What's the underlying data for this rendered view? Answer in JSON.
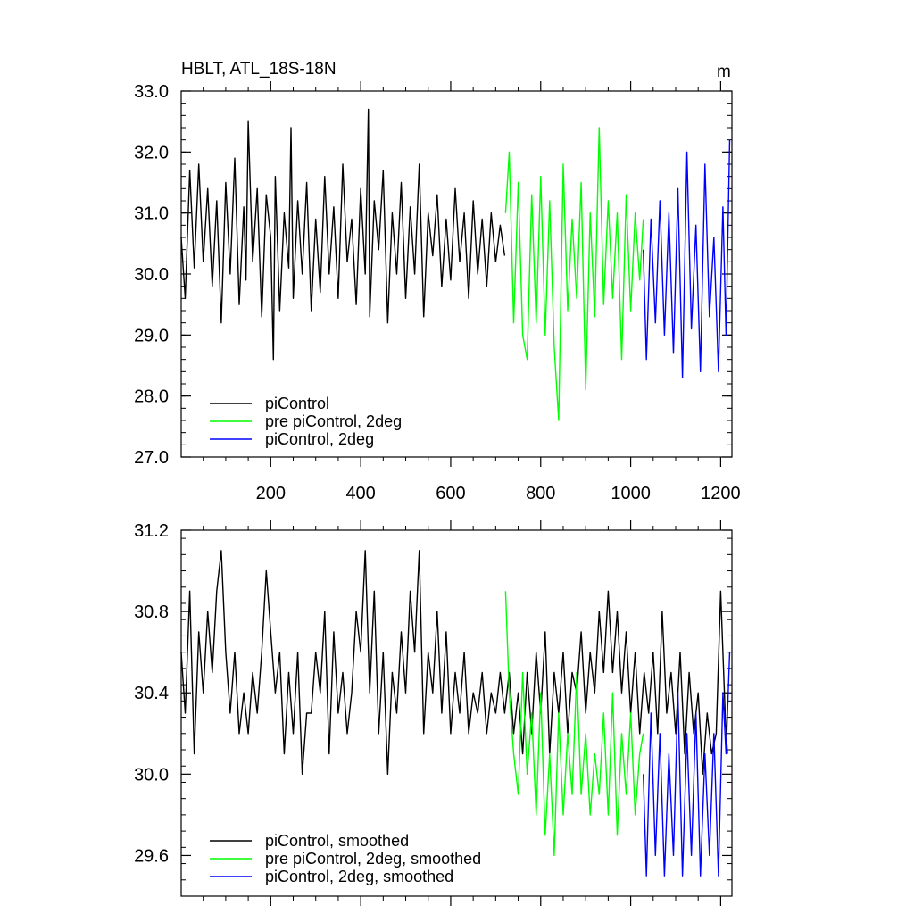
{
  "chart_data": [
    {
      "type": "line",
      "title": "HBLT, ATL_18S-18N",
      "units": "m",
      "xlim": [
        1,
        1225
      ],
      "ylim": [
        27.0,
        33.0
      ],
      "xticks": [
        200,
        400,
        600,
        800,
        1000,
        1200
      ],
      "xtick_labels": [
        "200",
        "400",
        "600",
        "800",
        "1000",
        "1200"
      ],
      "yticks": [
        27.0,
        28.0,
        29.0,
        30.0,
        31.0,
        32.0,
        33.0
      ],
      "ytick_labels": [
        "27.0",
        "28.0",
        "29.0",
        "30.0",
        "31.0",
        "32.0",
        "33.0"
      ],
      "grid": false,
      "legend_position": "bottom-left",
      "series": [
        {
          "name": "piControl",
          "color": "#000000",
          "x": [
            1,
            10,
            20,
            30,
            40,
            50,
            60,
            70,
            80,
            90,
            100,
            110,
            120,
            130,
            140,
            145,
            150,
            160,
            170,
            180,
            190,
            200,
            206,
            210,
            220,
            230,
            240,
            245,
            250,
            260,
            270,
            280,
            290,
            300,
            310,
            320,
            330,
            340,
            350,
            360,
            370,
            380,
            390,
            400,
            410,
            417,
            420,
            430,
            440,
            450,
            460,
            470,
            480,
            490,
            500,
            510,
            520,
            530,
            540,
            550,
            560,
            570,
            580,
            590,
            600,
            610,
            620,
            630,
            640,
            650,
            660,
            670,
            680,
            690,
            700,
            710,
            720
          ],
          "values": [
            30.6,
            29.6,
            31.7,
            30.1,
            31.8,
            30.2,
            31.4,
            29.8,
            31.2,
            29.2,
            31.5,
            30.0,
            31.9,
            29.5,
            31.1,
            29.9,
            32.5,
            30.2,
            31.4,
            29.3,
            31.3,
            30.6,
            28.6,
            31.6,
            29.4,
            31.0,
            30.1,
            32.4,
            29.6,
            31.2,
            30.0,
            31.5,
            29.4,
            30.9,
            29.7,
            31.6,
            30.0,
            31.1,
            29.6,
            31.8,
            30.2,
            30.9,
            29.5,
            31.4,
            30.0,
            32.7,
            29.3,
            31.2,
            30.4,
            31.7,
            29.2,
            31.0,
            30.0,
            31.5,
            29.6,
            31.1,
            30.0,
            31.8,
            29.3,
            31.0,
            30.3,
            31.3,
            29.8,
            30.9,
            29.9,
            31.4,
            30.2,
            31.0,
            29.6,
            31.2,
            30.0,
            30.9,
            29.8,
            31.0,
            30.2,
            30.8,
            30.3
          ]
        },
        {
          "name": "pre piControl, 2deg",
          "color": "#00ff00",
          "x": [
            722,
            730,
            740,
            750,
            760,
            770,
            780,
            790,
            800,
            810,
            820,
            830,
            840,
            850,
            860,
            870,
            880,
            890,
            900,
            910,
            920,
            930,
            940,
            950,
            960,
            970,
            980,
            990,
            1000,
            1010,
            1020,
            1028
          ],
          "values": [
            31.0,
            32.0,
            29.2,
            31.5,
            29.0,
            28.6,
            31.3,
            29.2,
            31.6,
            29.0,
            31.2,
            28.8,
            27.6,
            31.8,
            29.4,
            30.9,
            29.6,
            31.5,
            28.1,
            31.0,
            29.3,
            32.4,
            29.5,
            31.2,
            29.6,
            31.0,
            28.6,
            31.3,
            29.4,
            31.0,
            29.9,
            30.9
          ]
        },
        {
          "name": "piControl, 2deg",
          "color": "#0000ff",
          "x": [
            1028,
            1035,
            1045,
            1055,
            1065,
            1075,
            1085,
            1095,
            1105,
            1115,
            1125,
            1135,
            1145,
            1155,
            1165,
            1175,
            1185,
            1195,
            1205,
            1212,
            1220
          ],
          "values": [
            30.4,
            28.6,
            30.9,
            29.2,
            31.2,
            29.0,
            31.0,
            28.7,
            31.4,
            28.3,
            32.0,
            29.1,
            30.8,
            28.4,
            31.8,
            29.3,
            30.6,
            28.4,
            31.1,
            29.0,
            32.2
          ]
        }
      ]
    },
    {
      "type": "line",
      "title": "",
      "xlim": [
        1,
        1225
      ],
      "ylim": [
        29.4,
        31.2
      ],
      "xticks": [
        200,
        400,
        600,
        800,
        1000,
        1200
      ],
      "yticks": [
        29.6,
        30.0,
        30.4,
        30.8,
        31.2
      ],
      "ytick_labels": [
        "29.6",
        "30.0",
        "30.4",
        "30.8",
        "31.2"
      ],
      "grid": false,
      "legend_position": "bottom-left",
      "series": [
        {
          "name": "piControl, smoothed",
          "color": "#000000",
          "x": [
            1,
            10,
            20,
            30,
            40,
            50,
            60,
            70,
            80,
            90,
            100,
            110,
            120,
            130,
            140,
            150,
            160,
            170,
            180,
            190,
            200,
            210,
            220,
            230,
            240,
            250,
            260,
            270,
            280,
            290,
            300,
            310,
            320,
            330,
            340,
            350,
            360,
            370,
            380,
            390,
            400,
            410,
            420,
            430,
            440,
            450,
            460,
            470,
            480,
            490,
            500,
            510,
            520,
            530,
            540,
            550,
            560,
            570,
            580,
            590,
            600,
            610,
            620,
            630,
            640,
            650,
            660,
            670,
            680,
            690,
            700,
            710,
            720,
            730,
            740,
            750,
            760,
            770,
            780,
            790,
            800,
            810,
            820,
            830,
            840,
            850,
            860,
            870,
            880,
            890,
            900,
            910,
            920,
            930,
            940,
            950,
            960,
            970,
            980,
            990,
            1000,
            1010,
            1020,
            1030,
            1040,
            1050,
            1060,
            1070,
            1080,
            1090,
            1100,
            1110,
            1120,
            1130,
            1140,
            1150,
            1160,
            1170,
            1180,
            1190,
            1200,
            1210,
            1215
          ],
          "values": [
            30.6,
            30.3,
            30.9,
            30.1,
            30.7,
            30.4,
            30.8,
            30.5,
            30.9,
            31.1,
            30.6,
            30.3,
            30.6,
            30.2,
            30.4,
            30.2,
            30.5,
            30.3,
            30.6,
            31.0,
            30.7,
            30.4,
            30.6,
            30.1,
            30.5,
            30.2,
            30.6,
            30.0,
            30.3,
            30.3,
            30.6,
            30.4,
            30.8,
            30.1,
            30.7,
            30.3,
            30.5,
            30.2,
            30.4,
            30.8,
            30.6,
            31.1,
            30.4,
            30.9,
            30.2,
            30.6,
            30.0,
            30.5,
            30.3,
            30.7,
            30.4,
            30.9,
            30.6,
            31.1,
            30.2,
            30.6,
            30.4,
            30.8,
            30.3,
            30.7,
            30.2,
            30.5,
            30.3,
            30.6,
            30.2,
            30.4,
            30.3,
            30.5,
            30.2,
            30.4,
            30.3,
            30.5,
            30.3,
            30.5,
            30.2,
            30.4,
            30.1,
            30.5,
            30.2,
            30.6,
            30.3,
            30.7,
            30.1,
            30.5,
            30.3,
            30.6,
            30.2,
            30.5,
            30.4,
            30.7,
            30.3,
            30.6,
            30.4,
            30.8,
            30.5,
            30.9,
            30.5,
            30.8,
            30.4,
            30.7,
            30.3,
            30.6,
            30.2,
            30.5,
            30.3,
            30.6,
            30.2,
            30.8,
            30.3,
            30.5,
            30.2,
            30.6,
            30.1,
            30.5,
            30.2,
            30.4,
            30.0,
            30.3,
            30.1,
            30.2,
            30.9,
            30.3,
            30.1
          ]
        },
        {
          "name": "pre piControl, 2deg, smoothed",
          "color": "#00ff00",
          "x": [
            722,
            730,
            740,
            750,
            760,
            770,
            780,
            790,
            800,
            810,
            820,
            830,
            840,
            850,
            860,
            870,
            880,
            890,
            900,
            910,
            920,
            930,
            940,
            950,
            960,
            970,
            980,
            990,
            1000,
            1010,
            1020,
            1028
          ],
          "values": [
            30.9,
            30.4,
            30.1,
            29.9,
            30.5,
            30.0,
            30.3,
            29.8,
            30.4,
            29.7,
            30.1,
            29.6,
            30.3,
            29.8,
            30.2,
            29.9,
            30.5,
            29.9,
            30.2,
            29.8,
            30.1,
            29.9,
            30.3,
            29.8,
            30.4,
            29.7,
            30.2,
            29.9,
            30.3,
            29.8,
            30.1,
            30.2
          ]
        },
        {
          "name": "piControl, 2deg, smoothed",
          "color": "#0000ff",
          "x": [
            1028,
            1035,
            1045,
            1055,
            1065,
            1075,
            1085,
            1095,
            1105,
            1115,
            1125,
            1135,
            1145,
            1155,
            1165,
            1175,
            1185,
            1195,
            1205,
            1212,
            1220
          ],
          "values": [
            30.0,
            29.5,
            30.3,
            29.6,
            30.2,
            29.5,
            30.1,
            29.6,
            30.4,
            29.5,
            30.2,
            29.6,
            30.3,
            29.5,
            30.1,
            29.6,
            30.2,
            29.5,
            30.4,
            30.1,
            30.6
          ]
        }
      ]
    }
  ]
}
